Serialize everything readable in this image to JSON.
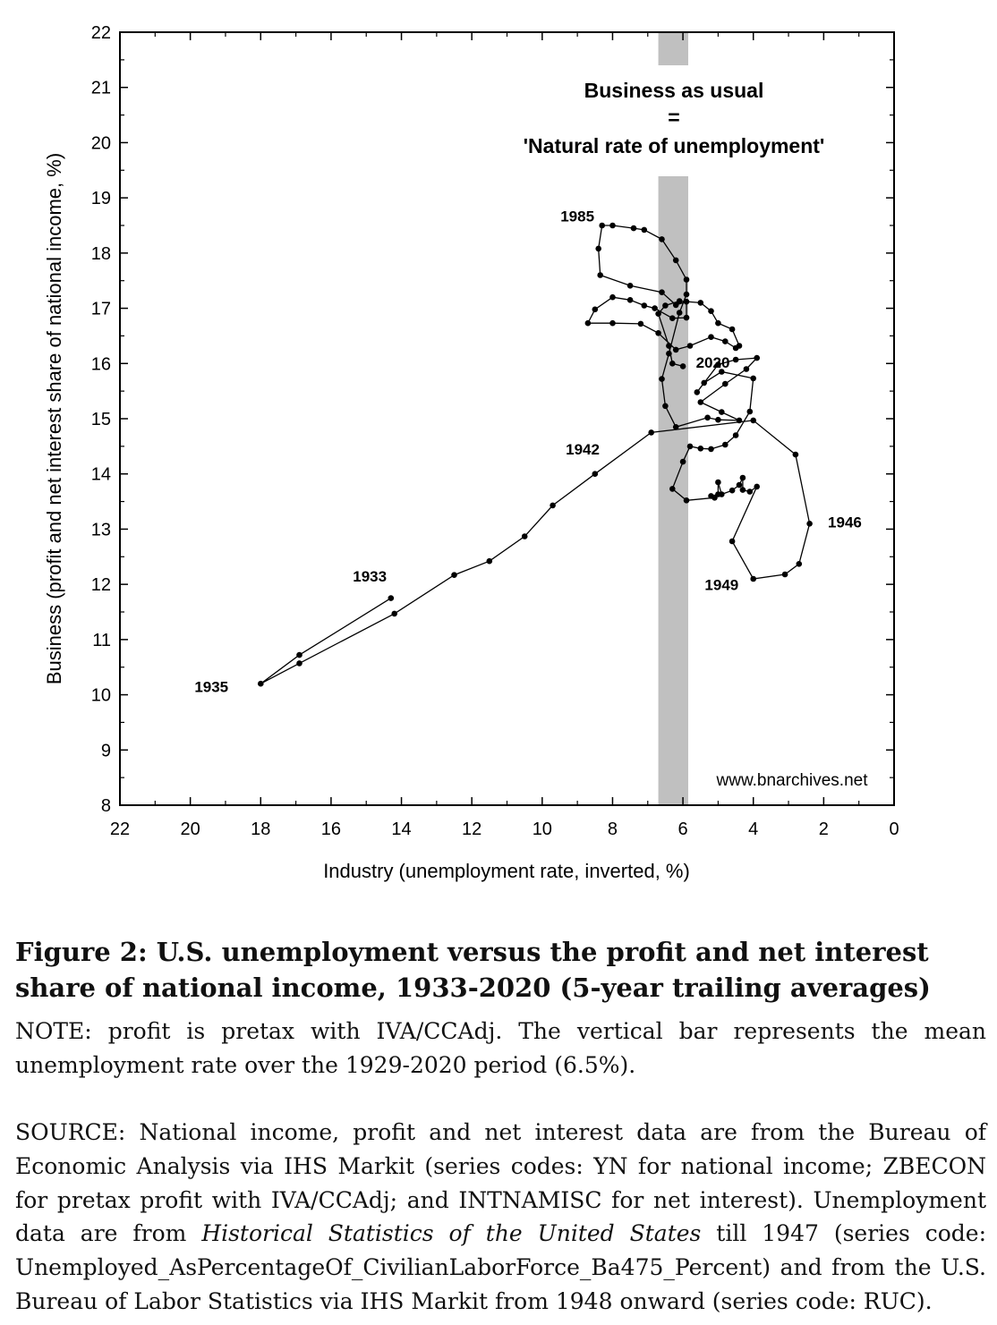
{
  "chart_data": {
    "type": "scatter",
    "xlabel": "Industry (unemployment rate, inverted, %)",
    "ylabel": "Business (profit and net interest share of national income, %)",
    "xlim": [
      22,
      0
    ],
    "ylim": [
      8,
      22
    ],
    "x_inverted": true,
    "x_ticks": [
      "22",
      "20",
      "18",
      "16",
      "14",
      "12",
      "10",
      "8",
      "6",
      "4",
      "2",
      "0"
    ],
    "y_ticks": [
      "8",
      "9",
      "10",
      "11",
      "12",
      "13",
      "14",
      "15",
      "16",
      "17",
      "18",
      "19",
      "20",
      "21",
      "22"
    ],
    "grid": false,
    "band": {
      "x_from": 6.7,
      "x_to": 5.85,
      "color": "#c0c0c0",
      "mean_label": "6.5%"
    },
    "band_annotation": [
      "Business as usual",
      "=",
      "'Natural rate of unemployment'"
    ],
    "watermark": "www.bnarchives.net",
    "year_labels": [
      "1933",
      "1935",
      "1942",
      "1946",
      "1949",
      "1985",
      "2020"
    ],
    "series": [
      {
        "x": [
          14.3,
          16.9,
          18.0,
          16.9,
          14.2,
          12.5,
          11.5,
          10.5,
          9.7,
          8.5,
          6.9,
          4.0,
          2.8,
          2.4,
          2.7,
          3.1,
          4.0,
          4.6,
          3.9,
          4.1,
          4.3,
          4.3,
          4.4,
          4.6,
          4.9,
          5.0,
          5.0,
          5.2,
          5.1,
          5.9,
          6.3,
          6.0,
          5.8,
          5.5,
          5.2,
          4.8,
          4.5,
          4.1,
          4.0,
          4.9,
          5.4,
          5.6,
          5.0,
          4.5,
          3.9,
          4.2,
          4.8,
          5.5,
          4.9,
          4.4,
          5.0,
          5.3,
          6.2,
          6.5,
          6.6,
          6.4,
          6.1,
          5.9,
          5.9,
          6.2,
          6.6,
          7.1,
          7.4,
          8.0,
          8.3,
          8.4,
          8.35,
          7.5,
          6.6,
          6.2,
          5.9,
          5.9,
          6.3,
          6.8,
          7.1,
          7.5,
          8.0,
          8.5,
          8.7,
          8.0,
          7.2,
          6.7,
          6.2,
          5.8,
          5.2,
          4.8,
          4.5,
          4.4,
          4.6,
          5.0,
          5.2,
          5.5,
          6.1,
          6.5,
          6.7,
          6.4,
          6.3,
          6.0
        ],
        "y": [
          11.75,
          10.72,
          10.2,
          10.57,
          11.47,
          12.17,
          12.42,
          12.87,
          13.43,
          14.0,
          14.75,
          14.97,
          14.35,
          13.1,
          12.37,
          12.18,
          12.1,
          12.78,
          13.77,
          13.68,
          13.71,
          13.93,
          13.8,
          13.7,
          13.63,
          13.85,
          13.63,
          13.6,
          13.57,
          13.52,
          13.73,
          14.22,
          14.5,
          14.46,
          14.45,
          14.53,
          14.7,
          15.13,
          15.73,
          15.85,
          15.65,
          15.48,
          15.98,
          16.07,
          16.1,
          15.9,
          15.63,
          15.3,
          15.12,
          14.97,
          14.98,
          15.02,
          14.85,
          15.23,
          15.72,
          16.18,
          16.92,
          17.25,
          17.52,
          17.87,
          18.25,
          18.42,
          18.45,
          18.5,
          18.5,
          18.08,
          17.6,
          17.41,
          17.29,
          17.06,
          17.12,
          16.83,
          16.82,
          17.0,
          17.05,
          17.15,
          17.2,
          16.98,
          16.73,
          16.73,
          16.72,
          16.55,
          16.25,
          16.32,
          16.48,
          16.4,
          16.28,
          16.32,
          16.62,
          16.73,
          16.95,
          17.1,
          17.13,
          17.05,
          16.9,
          16.32,
          16.0,
          15.95
        ]
      }
    ]
  },
  "caption": {
    "title": "Figure 2: U.S. unemployment versus the profit and net interest share of national income, 1933-2020 (5-year trailing averages)",
    "note": "NOTE: profit is pretax with IVA/CCAdj. The vertical bar represents the mean unemployment rate over the 1929-2020 period (6.5%).",
    "source_part1": "SOURCE: National income, profit and net interest data are from the Bureau of Economic Analysis via IHS Markit (series codes: YN for national income; ZBECON for pretax profit with IVA/CCAdj; and INTNAMISC for net interest). Unemployment data are from ",
    "source_italic": "Historical Statistics of the United States",
    "source_part2": " till 1947 (series code: Unemployed_AsPercentageOf_CivilianLaborForce_Ba475_Percent) and from the U.S. Bureau of Labor Statistics via IHS Markit from 1948 onward (series code: RUC)."
  }
}
